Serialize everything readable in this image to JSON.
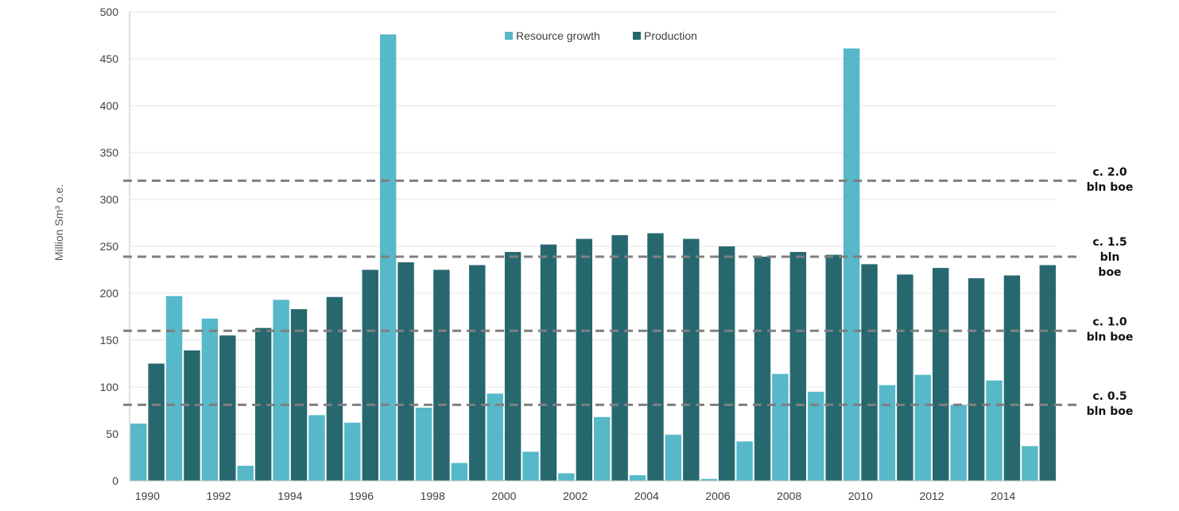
{
  "chart_data": {
    "type": "bar",
    "ylabel": "Million Sm³ o.e.",
    "xlabel": "",
    "ylim": [
      0,
      500
    ],
    "yticks": [
      0,
      50,
      100,
      150,
      200,
      250,
      300,
      350,
      400,
      450,
      500
    ],
    "categories": [
      "1990",
      "1991",
      "1992",
      "1993",
      "1994",
      "1995",
      "1996",
      "1997",
      "1998",
      "1999",
      "2000",
      "2001",
      "2002",
      "2003",
      "2004",
      "2005",
      "2006",
      "2007",
      "2008",
      "2009",
      "2010",
      "2011",
      "2012",
      "2013",
      "2014",
      "2015"
    ],
    "xtick_labels": [
      "1990",
      "1992",
      "1994",
      "1996",
      "1998",
      "2000",
      "2002",
      "2004",
      "2006",
      "2008",
      "2010",
      "2012",
      "2014"
    ],
    "grid": true,
    "legend_position": "top-center",
    "series": [
      {
        "name": "Resource growth",
        "color": "#56b8c8",
        "values": [
          61,
          197,
          173,
          16,
          193,
          70,
          62,
          476,
          78,
          19,
          93,
          31,
          8,
          68,
          6,
          49,
          2,
          42,
          114,
          95,
          461,
          102,
          113,
          81,
          107,
          37
        ]
      },
      {
        "name": "Production",
        "color": "#27686f",
        "values": [
          125,
          139,
          155,
          163,
          183,
          196,
          225,
          233,
          225,
          230,
          244,
          252,
          258,
          262,
          264,
          258,
          250,
          239,
          244,
          241,
          231,
          220,
          227,
          216,
          219,
          230
        ]
      }
    ],
    "reference_lines": [
      {
        "value": 320,
        "label_lines": [
          "c. 2.0",
          "bln boe"
        ]
      },
      {
        "value": 239,
        "label_lines": [
          "c. 1.5",
          "bln",
          "boe"
        ]
      },
      {
        "value": 160,
        "label_lines": [
          "c. 1.0",
          "bln boe"
        ]
      },
      {
        "value": 81,
        "label_lines": [
          "c. 0.5",
          "bln boe"
        ]
      }
    ]
  }
}
